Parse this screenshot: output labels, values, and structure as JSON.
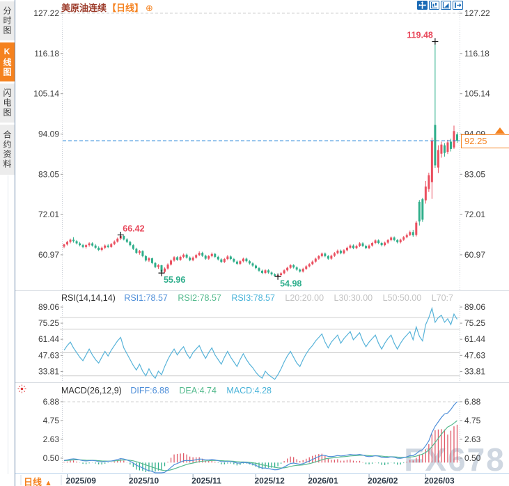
{
  "colors": {
    "accent_orange": "#f5821f",
    "candle_up": "#ea4f5f",
    "candle_down": "#2eae8a",
    "rsi_line": "#57b3d9",
    "diff_line": "#4e8ed8",
    "dea_line": "#55b98e",
    "hist_up": "#e05a68",
    "hist_down": "#2eae8a",
    "price_line_blue": "#1f80d6",
    "annotation_red": "#e8475a",
    "annotation_teal": "#2fae8c",
    "toolbar_blue": "#1a6ab5"
  },
  "sidebar": {
    "tabs": [
      {
        "label": "分时图",
        "selected": false
      },
      {
        "label": "K线图",
        "selected": true
      },
      {
        "label": "闪电图",
        "selected": false
      },
      {
        "label": "合约资料",
        "selected": false
      }
    ]
  },
  "title": {
    "name": "美原油连续",
    "period": "【日线】",
    "add_icon": "⊕"
  },
  "toolbar_icons": [
    "crosshair-icon",
    "zoom-range-icon",
    "scale-axis-icon",
    "exit-right-icon"
  ],
  "price_marker": {
    "value": "92.25"
  },
  "bottom_bar": {
    "period_label": "日线",
    "arrow": "▲"
  },
  "watermark": "FX678",
  "rsi_header": {
    "label": "RSI(14,14,14)",
    "rsi1": "RSI1:78.57",
    "rsi2": "RSI2:78.57",
    "rsi3": "RSI3:78.57",
    "l20": "L20:20.00",
    "l30": "L30:30.00",
    "l50": "L50:50.00",
    "l70": "L70:7"
  },
  "macd_header": {
    "label": "MACD(26,12,9)",
    "diff": "DIFF:6.88",
    "dea": "DEA:4.74",
    "macd": "MACD:4.28"
  },
  "chart_data": {
    "type": "candlestick",
    "title": "美原油连续 日线 (US Crude Oil Continuous, Daily)",
    "main_y_axis": [
      "127.22",
      "116.18",
      "105.14",
      "94.09",
      "83.05",
      "72.01",
      "60.97"
    ],
    "rsi_y_axis": [
      "89.06",
      "75.25",
      "61.44",
      "47.63",
      "33.81"
    ],
    "rsi_levels": [
      80,
      70,
      50,
      30
    ],
    "macd_y_axis": [
      "6.88",
      "4.75",
      "2.63",
      "0.50"
    ],
    "x_axis": {
      "labels": [
        "2025/09",
        "2025/10",
        "2025/11",
        "2025/12",
        "2026/01",
        "2026/02",
        "2026/03"
      ],
      "candle_indices": [
        1,
        21,
        41,
        61,
        78,
        97,
        115
      ]
    },
    "current_price": 92.25,
    "annotations": [
      {
        "text": "119.48",
        "index": 118,
        "price": 119.48,
        "color": "#e8475a",
        "placement": "above-left"
      },
      {
        "text": "66.42",
        "index": 18,
        "price": 66.42,
        "color": "#e8475a",
        "placement": "above-right"
      },
      {
        "text": "55.96",
        "index": 31,
        "price": 55.96,
        "color": "#2fae8c",
        "placement": "below-right"
      },
      {
        "text": "54.98",
        "index": 68,
        "price": 54.98,
        "color": "#2fae8c",
        "placement": "below-right"
      }
    ],
    "candles": [
      [
        63.2,
        64.0,
        62.8,
        63.8
      ],
      [
        63.8,
        64.8,
        63.5,
        64.5
      ],
      [
        64.5,
        65.4,
        64.1,
        65.1
      ],
      [
        65.1,
        65.8,
        64.3,
        64.7
      ],
      [
        64.7,
        65.0,
        63.8,
        64.1
      ],
      [
        64.1,
        64.5,
        63.3,
        63.6
      ],
      [
        63.6,
        64.0,
        62.8,
        63.1
      ],
      [
        63.1,
        63.9,
        62.7,
        63.6
      ],
      [
        63.6,
        64.4,
        63.2,
        64.1
      ],
      [
        64.1,
        64.4,
        63.2,
        63.5
      ],
      [
        63.5,
        63.9,
        62.6,
        62.9
      ],
      [
        62.9,
        63.3,
        62.0,
        62.3
      ],
      [
        62.3,
        63.2,
        61.9,
        62.9
      ],
      [
        62.9,
        63.8,
        62.5,
        63.5
      ],
      [
        63.5,
        63.9,
        62.8,
        63.1
      ],
      [
        63.1,
        64.2,
        62.9,
        63.9
      ],
      [
        63.9,
        64.9,
        63.6,
        64.6
      ],
      [
        64.6,
        65.7,
        64.3,
        65.4
      ],
      [
        65.4,
        66.42,
        65.0,
        66.1
      ],
      [
        66.1,
        66.3,
        64.9,
        65.2
      ],
      [
        65.2,
        65.5,
        64.2,
        64.5
      ],
      [
        64.5,
        64.8,
        63.3,
        63.6
      ],
      [
        63.6,
        63.9,
        62.3,
        62.6
      ],
      [
        62.6,
        62.9,
        61.2,
        61.5
      ],
      [
        61.5,
        62.3,
        61.0,
        62.0
      ],
      [
        62.0,
        62.2,
        60.3,
        60.6
      ],
      [
        60.6,
        60.9,
        59.1,
        59.4
      ],
      [
        59.4,
        60.3,
        59.0,
        60.0
      ],
      [
        60.0,
        60.2,
        58.4,
        58.7
      ],
      [
        58.7,
        59.0,
        57.3,
        57.6
      ],
      [
        57.6,
        58.4,
        57.1,
        58.1
      ],
      [
        58.1,
        58.2,
        55.96,
        56.3
      ],
      [
        56.3,
        57.5,
        56.0,
        57.2
      ],
      [
        57.2,
        58.6,
        56.9,
        58.3
      ],
      [
        58.3,
        59.7,
        58.0,
        59.4
      ],
      [
        59.4,
        60.6,
        59.1,
        60.3
      ],
      [
        60.3,
        60.6,
        59.3,
        59.6
      ],
      [
        59.6,
        60.7,
        59.3,
        60.4
      ],
      [
        60.4,
        61.3,
        60.0,
        61.0
      ],
      [
        61.0,
        61.3,
        59.9,
        60.2
      ],
      [
        60.2,
        60.5,
        59.2,
        59.5
      ],
      [
        59.5,
        60.5,
        59.2,
        60.2
      ],
      [
        60.2,
        61.2,
        59.9,
        60.9
      ],
      [
        60.9,
        61.9,
        60.6,
        61.5
      ],
      [
        61.5,
        61.8,
        60.4,
        60.7
      ],
      [
        60.7,
        61.0,
        59.6,
        59.9
      ],
      [
        59.9,
        60.9,
        59.6,
        60.6
      ],
      [
        60.6,
        61.6,
        60.3,
        61.2
      ],
      [
        61.2,
        61.5,
        60.1,
        60.4
      ],
      [
        60.4,
        60.7,
        59.4,
        59.7
      ],
      [
        59.7,
        60.0,
        58.7,
        59.0
      ],
      [
        59.0,
        60.1,
        58.7,
        59.8
      ],
      [
        59.8,
        60.9,
        59.5,
        60.5
      ],
      [
        60.5,
        60.8,
        59.5,
        59.8
      ],
      [
        59.8,
        60.1,
        58.8,
        59.1
      ],
      [
        59.1,
        59.4,
        58.2,
        58.5
      ],
      [
        58.5,
        59.5,
        58.2,
        59.2
      ],
      [
        59.2,
        60.2,
        58.9,
        59.9
      ],
      [
        59.9,
        60.2,
        58.9,
        59.2
      ],
      [
        59.2,
        59.5,
        58.3,
        58.6
      ],
      [
        58.6,
        58.9,
        57.7,
        58.0
      ],
      [
        58.0,
        58.3,
        57.0,
        57.3
      ],
      [
        57.3,
        57.6,
        56.3,
        56.6
      ],
      [
        56.6,
        56.9,
        55.7,
        56.0
      ],
      [
        56.0,
        57.0,
        55.7,
        56.7
      ],
      [
        56.7,
        57.0,
        55.8,
        56.1
      ],
      [
        56.1,
        56.4,
        55.3,
        55.6
      ],
      [
        55.6,
        55.9,
        55.0,
        55.2
      ],
      [
        55.2,
        55.6,
        54.98,
        55.4
      ],
      [
        55.4,
        56.2,
        55.1,
        55.9
      ],
      [
        55.9,
        57.0,
        55.6,
        56.7
      ],
      [
        56.7,
        57.7,
        56.4,
        57.4
      ],
      [
        57.4,
        58.4,
        57.1,
        58.1
      ],
      [
        58.1,
        58.4,
        57.2,
        57.5
      ],
      [
        57.5,
        57.8,
        56.6,
        56.9
      ],
      [
        56.9,
        57.2,
        56.1,
        56.4
      ],
      [
        56.4,
        57.4,
        56.1,
        57.1
      ],
      [
        57.1,
        58.1,
        56.8,
        57.8
      ],
      [
        57.8,
        58.7,
        57.5,
        58.4
      ],
      [
        58.4,
        59.4,
        58.1,
        59.1
      ],
      [
        59.1,
        60.2,
        58.8,
        59.9
      ],
      [
        59.9,
        60.9,
        59.6,
        60.6
      ],
      [
        60.6,
        61.6,
        60.3,
        61.3
      ],
      [
        61.3,
        61.6,
        60.3,
        60.6
      ],
      [
        60.6,
        60.9,
        59.6,
        59.9
      ],
      [
        59.9,
        61.0,
        59.6,
        60.7
      ],
      [
        60.7,
        61.7,
        60.4,
        61.4
      ],
      [
        61.4,
        62.4,
        61.1,
        62.1
      ],
      [
        62.1,
        62.4,
        61.1,
        61.4
      ],
      [
        61.4,
        62.5,
        61.1,
        62.2
      ],
      [
        62.2,
        63.2,
        61.9,
        62.9
      ],
      [
        62.9,
        63.8,
        62.6,
        63.5
      ],
      [
        63.5,
        63.8,
        62.5,
        62.8
      ],
      [
        62.8,
        63.7,
        62.5,
        63.4
      ],
      [
        63.4,
        64.4,
        63.1,
        64.1
      ],
      [
        64.1,
        64.4,
        63.1,
        63.4
      ],
      [
        63.4,
        63.7,
        62.5,
        62.8
      ],
      [
        62.8,
        63.8,
        62.5,
        63.5
      ],
      [
        63.5,
        64.5,
        63.2,
        64.2
      ],
      [
        64.2,
        65.2,
        63.9,
        64.9
      ],
      [
        64.9,
        65.2,
        63.9,
        64.2
      ],
      [
        64.2,
        64.5,
        63.3,
        63.6
      ],
      [
        63.6,
        64.6,
        63.3,
        64.3
      ],
      [
        64.3,
        65.3,
        64.0,
        65.0
      ],
      [
        65.0,
        66.0,
        64.7,
        65.7
      ],
      [
        65.7,
        66.0,
        64.7,
        65.0
      ],
      [
        65.0,
        65.3,
        64.1,
        64.4
      ],
      [
        64.4,
        65.4,
        64.1,
        65.1
      ],
      [
        65.1,
        66.1,
        64.8,
        65.8
      ],
      [
        65.8,
        66.8,
        65.5,
        66.4
      ],
      [
        66.4,
        67.6,
        66.1,
        67.2
      ],
      [
        67.2,
        67.8,
        65.9,
        66.3
      ],
      [
        66.4,
        70.3,
        66.0,
        69.8
      ],
      [
        75.5,
        76.0,
        69.0,
        70.1
      ],
      [
        76.2,
        76.6,
        70.0,
        70.6
      ],
      [
        75.9,
        81.2,
        75.0,
        79.7
      ],
      [
        79.0,
        83.5,
        78.2,
        82.8
      ],
      [
        80.9,
        93.1,
        76.3,
        92.3
      ],
      [
        96.6,
        119.48,
        84.8,
        85.5
      ],
      [
        84.9,
        91.0,
        83.4,
        89.7
      ],
      [
        88.7,
        92.0,
        87.6,
        91.2
      ],
      [
        91.0,
        91.6,
        87.9,
        88.9
      ],
      [
        89.2,
        92.5,
        88.6,
        91.8
      ],
      [
        92.0,
        92.8,
        89.3,
        90.0
      ],
      [
        90.4,
        96.4,
        90.0,
        94.9
      ],
      [
        94.0,
        94.6,
        91.7,
        92.25
      ]
    ],
    "rsi_values": [
      52,
      56,
      59,
      54,
      50,
      46,
      43,
      48,
      53,
      48,
      44,
      41,
      46,
      51,
      47,
      52,
      56,
      60,
      63,
      54,
      49,
      44,
      39,
      35,
      40,
      34,
      30,
      36,
      31,
      28,
      34,
      31,
      38,
      44,
      49,
      53,
      48,
      52,
      55,
      49,
      45,
      50,
      53,
      56,
      50,
      45,
      50,
      54,
      48,
      44,
      40,
      46,
      51,
      46,
      42,
      38,
      44,
      49,
      44,
      40,
      37,
      33,
      30,
      28,
      34,
      31,
      29,
      27,
      31,
      36,
      42,
      47,
      51,
      46,
      41,
      38,
      44,
      49,
      53,
      56,
      60,
      63,
      66,
      59,
      54,
      59,
      62,
      65,
      58,
      62,
      65,
      68,
      61,
      64,
      67,
      60,
      55,
      59,
      62,
      65,
      58,
      53,
      58,
      62,
      65,
      58,
      53,
      58,
      62,
      65,
      68,
      61,
      72,
      64,
      60,
      74,
      80,
      88,
      76,
      80,
      82,
      76,
      79,
      74,
      83,
      78.57
    ],
    "macd_diff": [
      0.25,
      0.3,
      0.38,
      0.42,
      0.38,
      0.3,
      0.22,
      0.18,
      0.22,
      0.25,
      0.2,
      0.12,
      0.08,
      0.12,
      0.15,
      0.18,
      0.25,
      0.35,
      0.45,
      0.4,
      0.3,
      0.15,
      -0.05,
      -0.3,
      -0.45,
      -0.6,
      -0.8,
      -0.9,
      -1.0,
      -1.15,
      -1.2,
      -1.25,
      -1.1,
      -0.85,
      -0.55,
      -0.25,
      -0.1,
      0.05,
      0.2,
      0.25,
      0.22,
      0.25,
      0.32,
      0.4,
      0.38,
      0.3,
      0.3,
      0.34,
      0.3,
      0.22,
      0.12,
      0.1,
      0.14,
      0.12,
      0.05,
      -0.05,
      -0.05,
      0.02,
      0.0,
      -0.08,
      -0.18,
      -0.32,
      -0.48,
      -0.62,
      -0.62,
      -0.68,
      -0.75,
      -0.82,
      -0.8,
      -0.68,
      -0.5,
      -0.3,
      -0.1,
      -0.05,
      -0.12,
      -0.2,
      -0.12,
      0.02,
      0.18,
      0.35,
      0.52,
      0.68,
      0.82,
      0.8,
      0.7,
      0.68,
      0.72,
      0.8,
      0.75,
      0.78,
      0.85,
      0.92,
      0.88,
      0.88,
      0.92,
      0.85,
      0.72,
      0.68,
      0.7,
      0.78,
      0.72,
      0.6,
      0.55,
      0.58,
      0.65,
      0.6,
      0.5,
      0.48,
      0.55,
      0.65,
      0.78,
      0.78,
      1.0,
      1.3,
      1.45,
      1.9,
      2.45,
      3.4,
      4.1,
      4.6,
      5.1,
      5.5,
      5.6,
      6.0,
      6.5,
      6.88
    ],
    "macd_dea": [
      0.22,
      0.24,
      0.27,
      0.3,
      0.32,
      0.31,
      0.29,
      0.27,
      0.26,
      0.26,
      0.25,
      0.22,
      0.19,
      0.18,
      0.17,
      0.17,
      0.19,
      0.22,
      0.27,
      0.29,
      0.29,
      0.26,
      0.2,
      0.1,
      -0.01,
      -0.13,
      -0.26,
      -0.39,
      -0.51,
      -0.64,
      -0.75,
      -0.85,
      -0.9,
      -0.89,
      -0.82,
      -0.71,
      -0.59,
      -0.46,
      -0.33,
      -0.21,
      -0.12,
      -0.05,
      0.02,
      0.1,
      0.16,
      0.19,
      0.21,
      0.24,
      0.25,
      0.24,
      0.22,
      0.2,
      0.19,
      0.17,
      0.15,
      0.11,
      0.08,
      0.07,
      0.05,
      0.02,
      -0.02,
      -0.08,
      -0.16,
      -0.25,
      -0.32,
      -0.39,
      -0.46,
      -0.53,
      -0.59,
      -0.61,
      -0.59,
      -0.53,
      -0.44,
      -0.36,
      -0.31,
      -0.29,
      -0.26,
      -0.2,
      -0.12,
      -0.03,
      0.08,
      0.2,
      0.32,
      0.42,
      0.48,
      0.52,
      0.56,
      0.61,
      0.64,
      0.67,
      0.7,
      0.75,
      0.77,
      0.79,
      0.82,
      0.83,
      0.81,
      0.78,
      0.76,
      0.77,
      0.76,
      0.73,
      0.69,
      0.67,
      0.66,
      0.65,
      0.62,
      0.59,
      0.58,
      0.6,
      0.63,
      0.66,
      0.73,
      0.84,
      0.96,
      1.15,
      1.41,
      1.81,
      2.27,
      2.73,
      3.21,
      3.63,
      4.02,
      4.2,
      4.45,
      4.74
    ]
  }
}
